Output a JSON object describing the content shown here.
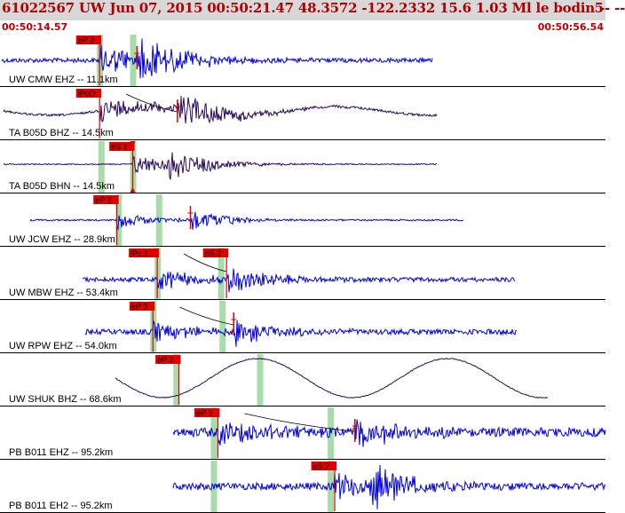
{
  "header": {
    "title": "61022567 UW Jun 07, 2015 00:50:21.47    48.3572 -122.2332 15.6 1.03 Ml le bodin -- --",
    "right_text": "5",
    "start_time": "00:50:14.57",
    "end_time": "00:50:56.54"
  },
  "colors": {
    "background": "#ffffff",
    "header_bg": "#d8d8d8",
    "header_text": "#b00000",
    "trace_blue": "#0000e6",
    "trace_purple": "#2a0a5e",
    "pick_red": "#e00000",
    "window_green": "#a8dca8"
  },
  "traces": [
    {
      "label": "UW CMW EHZ -- 11.1km",
      "color": "blue",
      "picks": [
        {
          "label": "eP 2",
          "t": 6.9,
          "type": "P"
        },
        {
          "label": "",
          "t": 9.5,
          "type": "S"
        }
      ],
      "windows": [
        6.9,
        9.2
      ]
    },
    {
      "label": "TA B05D BHZ -- 14.5km",
      "color": "purple",
      "picks": [
        {
          "label": "iPcO",
          "t": 6.9,
          "type": "P"
        },
        {
          "label": "",
          "t": 12.3,
          "type": "S"
        }
      ],
      "windows": []
    },
    {
      "label": "TA B05D BHN -- 14.5km",
      "color": "purple",
      "picks": [
        {
          "label": "eS 1",
          "t": 9.2,
          "type": "S"
        }
      ],
      "windows": [
        7.0,
        9.2
      ]
    },
    {
      "label": "UW JCW EHZ -- 28.9km",
      "color": "blue",
      "picks": [
        {
          "label": "eP 2",
          "t": 8.1,
          "type": "P"
        },
        {
          "label": "",
          "t": 13.2,
          "type": "S"
        }
      ],
      "windows": [
        8.2,
        11.0
      ]
    },
    {
      "label": "UW MBW EHZ -- 53.4km",
      "color": "blue",
      "picks": [
        {
          "label": "iPc 1",
          "t": 10.9,
          "type": "P"
        },
        {
          "label": "eS 2",
          "t": 15.7,
          "type": "S"
        }
      ],
      "windows": [
        10.9,
        15.3
      ]
    },
    {
      "label": "UW RPW EHZ -- 54.0km",
      "color": "blue",
      "picks": [
        {
          "label": "eP 3",
          "t": 10.6,
          "type": "P"
        },
        {
          "label": "",
          "t": 16.2,
          "type": "S"
        }
      ],
      "windows": [
        10.6,
        15.4
      ]
    },
    {
      "label": "UW SHUK BHZ -- 68.6km",
      "color": "purple",
      "picks": [
        {
          "label": "eP 2",
          "t": 12.4,
          "type": "P"
        }
      ],
      "windows": [
        12.2,
        18.0
      ]
    },
    {
      "label": "PB B011 EHZ -- 95.2km",
      "color": "blue",
      "picks": [
        {
          "label": "eP 2",
          "t": 15.1,
          "type": "P"
        },
        {
          "label": "",
          "t": 24.6,
          "type": "S"
        }
      ],
      "windows": [
        14.8,
        22.9
      ]
    },
    {
      "label": "PB B011 EH2 -- 95.2km",
      "color": "blue",
      "picks": [
        {
          "label": "eS 2",
          "t": 23.2,
          "type": "S"
        }
      ],
      "windows": [
        14.8,
        22.9
      ]
    }
  ]
}
